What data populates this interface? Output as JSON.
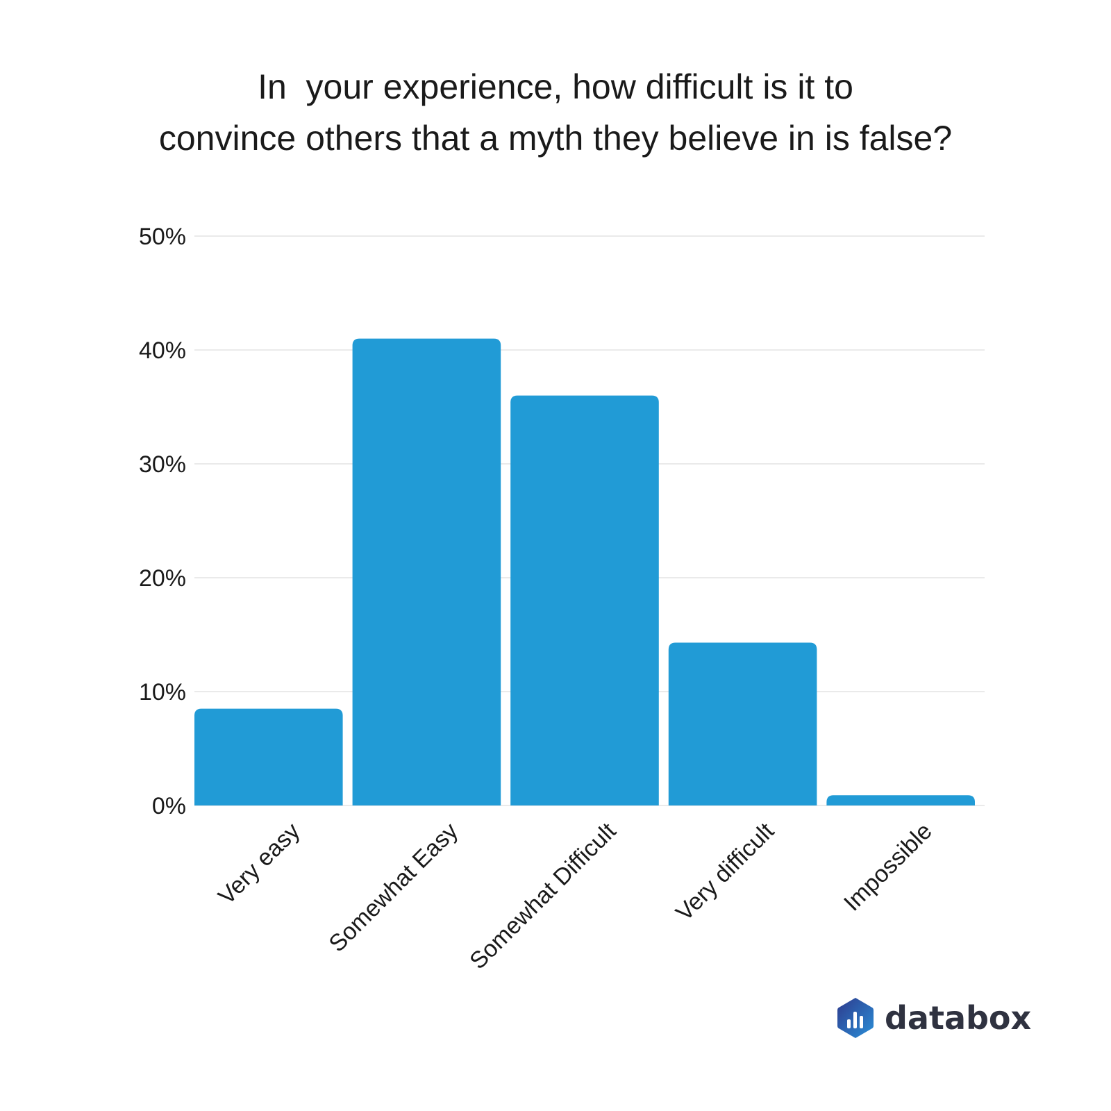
{
  "colors": {
    "bar": "#219bd6",
    "grid": "#dddddd",
    "text": "#1a1a1a",
    "logo_text": "#2f3240",
    "logo_icon_dark": "#2e3a8c",
    "logo_icon_light": "#2a8fd8"
  },
  "logo": {
    "text": "databox",
    "icon": "databox-logo-icon"
  },
  "chart_data": {
    "type": "bar",
    "title": "In  your experience, how difficult is it to\nconvince others that a myth they believe in is false?",
    "categories": [
      "Very easy",
      "Somewhat Easy",
      "Somewhat Difficult",
      "Very difficult",
      "Impossible"
    ],
    "values": [
      8.5,
      41,
      36,
      14.3,
      0.9
    ],
    "unit": "%",
    "ylim": [
      0,
      50
    ],
    "yticks": [
      0,
      10,
      20,
      30,
      40,
      50
    ],
    "ytick_labels": [
      "0%",
      "10%",
      "20%",
      "30%",
      "40%",
      "50%"
    ],
    "grid": true,
    "xlabel": "",
    "ylabel": "",
    "legend": "none"
  }
}
